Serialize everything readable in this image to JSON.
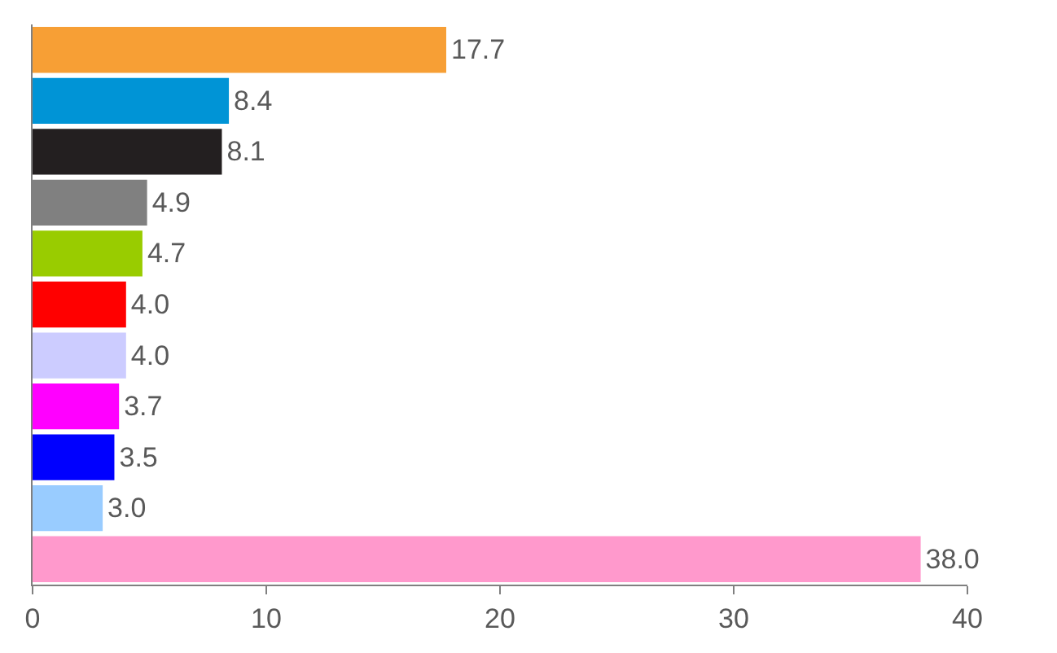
{
  "chart_data": {
    "type": "bar",
    "orientation": "horizontal",
    "categories": [
      null,
      null,
      null,
      null,
      null,
      null,
      null,
      null,
      null,
      null,
      null
    ],
    "values": [
      17.7,
      8.4,
      8.1,
      4.9,
      4.7,
      4.0,
      4.0,
      3.7,
      3.5,
      3.0,
      38.0
    ],
    "value_labels": [
      "17.7",
      "8.4",
      "8.1",
      "4.9",
      "4.7",
      "4.0",
      "4.0",
      "3.7",
      "3.5",
      "3.0",
      "38.0"
    ],
    "colors": [
      "#f79f35",
      "#0094d6",
      "#231f20",
      "#808080",
      "#99cc00",
      "#ff0000",
      "#ccccff",
      "#ff00ff",
      "#0000ff",
      "#99ccff",
      "#ff99cc"
    ],
    "xlim": [
      0,
      40
    ],
    "xticks": [
      0,
      10,
      20,
      30,
      40
    ],
    "tick_labels": "x"
  }
}
